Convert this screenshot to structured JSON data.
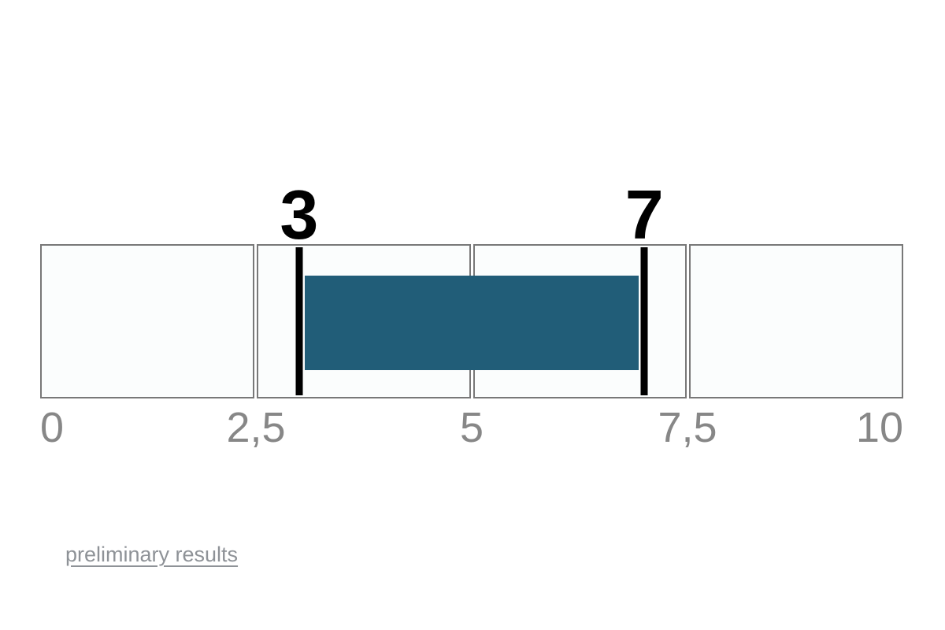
{
  "chart_data": {
    "type": "bar",
    "subtype": "linear-range-gauge",
    "title": "",
    "scale": {
      "min": 0,
      "max": 10
    },
    "range": {
      "start": 3,
      "end": 7
    },
    "range_labels": {
      "start": "3",
      "end": "7"
    },
    "segments": [
      {
        "from": 0,
        "to": 2.5
      },
      {
        "from": 2.5,
        "to": 5
      },
      {
        "from": 5,
        "to": 7.5
      },
      {
        "from": 7.5,
        "to": 10
      }
    ],
    "ticks": [
      {
        "value": 0,
        "label": "0"
      },
      {
        "value": 2.5,
        "label": "2,5"
      },
      {
        "value": 5,
        "label": "5"
      },
      {
        "value": 7.5,
        "label": "7,5"
      },
      {
        "value": 10,
        "label": "10"
      }
    ],
    "colors": {
      "bar": "#215d78",
      "marker": "#000000",
      "segment_fill": "#fbfdfd",
      "segment_border": "#787878",
      "tick_label": "#878787",
      "value_label": "#000000"
    },
    "layout": {
      "grid": false,
      "legend": "none"
    }
  },
  "footer": {
    "link_label": "preliminary results",
    "link_color": "#8e9297"
  }
}
